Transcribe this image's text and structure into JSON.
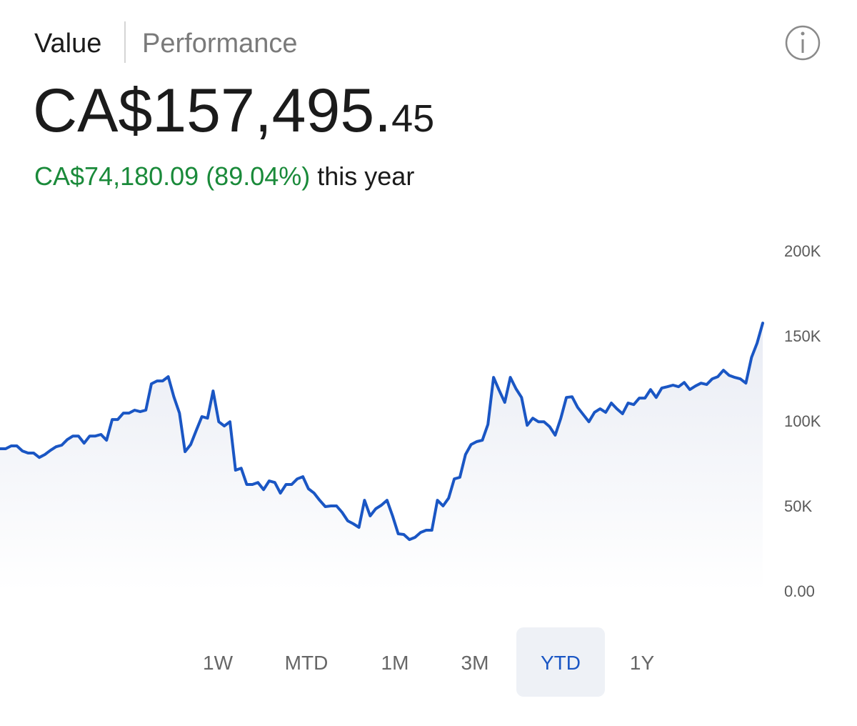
{
  "tabs": [
    "Value",
    "Performance"
  ],
  "balance": {
    "main": "CA$157,495.",
    "cents": "45"
  },
  "change": {
    "amount": "CA$74,180.09 (89.04%)",
    "suffix": "this year"
  },
  "chart_data": {
    "type": "line",
    "series": [
      {
        "color": "#1a56c4",
        "values": [
          83600,
          83600,
          85300,
          85300,
          82300,
          81100,
          81100,
          78500,
          80200,
          82700,
          84800,
          85700,
          89000,
          91100,
          91100,
          86900,
          91100,
          91100,
          92000,
          88600,
          100800,
          100800,
          104600,
          104600,
          106300,
          105400,
          106300,
          121800,
          123500,
          123500,
          126000,
          114200,
          104600,
          81900,
          86100,
          94500,
          102500,
          101600,
          117600,
          99500,
          97000,
          99500,
          71000,
          72200,
          62600,
          62600,
          63800,
          59600,
          64700,
          63800,
          57500,
          62600,
          62600,
          65900,
          67200,
          60100,
          57500,
          53300,
          49600,
          50000,
          50000,
          46200,
          41200,
          39500,
          37400,
          53300,
          44100,
          48300,
          50400,
          53300,
          44100,
          33600,
          33200,
          30200,
          31500,
          34400,
          35700,
          35700,
          53300,
          50000,
          54600,
          65900,
          66800,
          80200,
          86100,
          87800,
          88600,
          97900,
          125600,
          118000,
          110900,
          125600,
          118900,
          113800,
          97400,
          101600,
          99500,
          99500,
          96600,
          91600,
          101600,
          113800,
          114200,
          107900,
          103700,
          99500,
          105000,
          107100,
          105000,
          110500,
          107100,
          104200,
          110500,
          109600,
          113400,
          113400,
          118400,
          113800,
          119300,
          120100,
          121000,
          120100,
          122600,
          118400,
          120500,
          122200,
          121400,
          124700,
          126000,
          129800,
          126800,
          125600,
          124700,
          122200,
          137300,
          145700,
          157500
        ]
      }
    ],
    "ylim": [
      0,
      200000
    ],
    "yticks": [
      {
        "value": 0,
        "label": "0.00"
      },
      {
        "value": 50000,
        "label": "50K"
      },
      {
        "value": 100000,
        "label": "100K"
      },
      {
        "value": 150000,
        "label": "150K"
      },
      {
        "value": 200000,
        "label": "200K"
      }
    ],
    "area": true
  },
  "ranges": [
    "1W",
    "MTD",
    "1M",
    "3M",
    "YTD",
    "1Y"
  ],
  "selected_range": 4
}
